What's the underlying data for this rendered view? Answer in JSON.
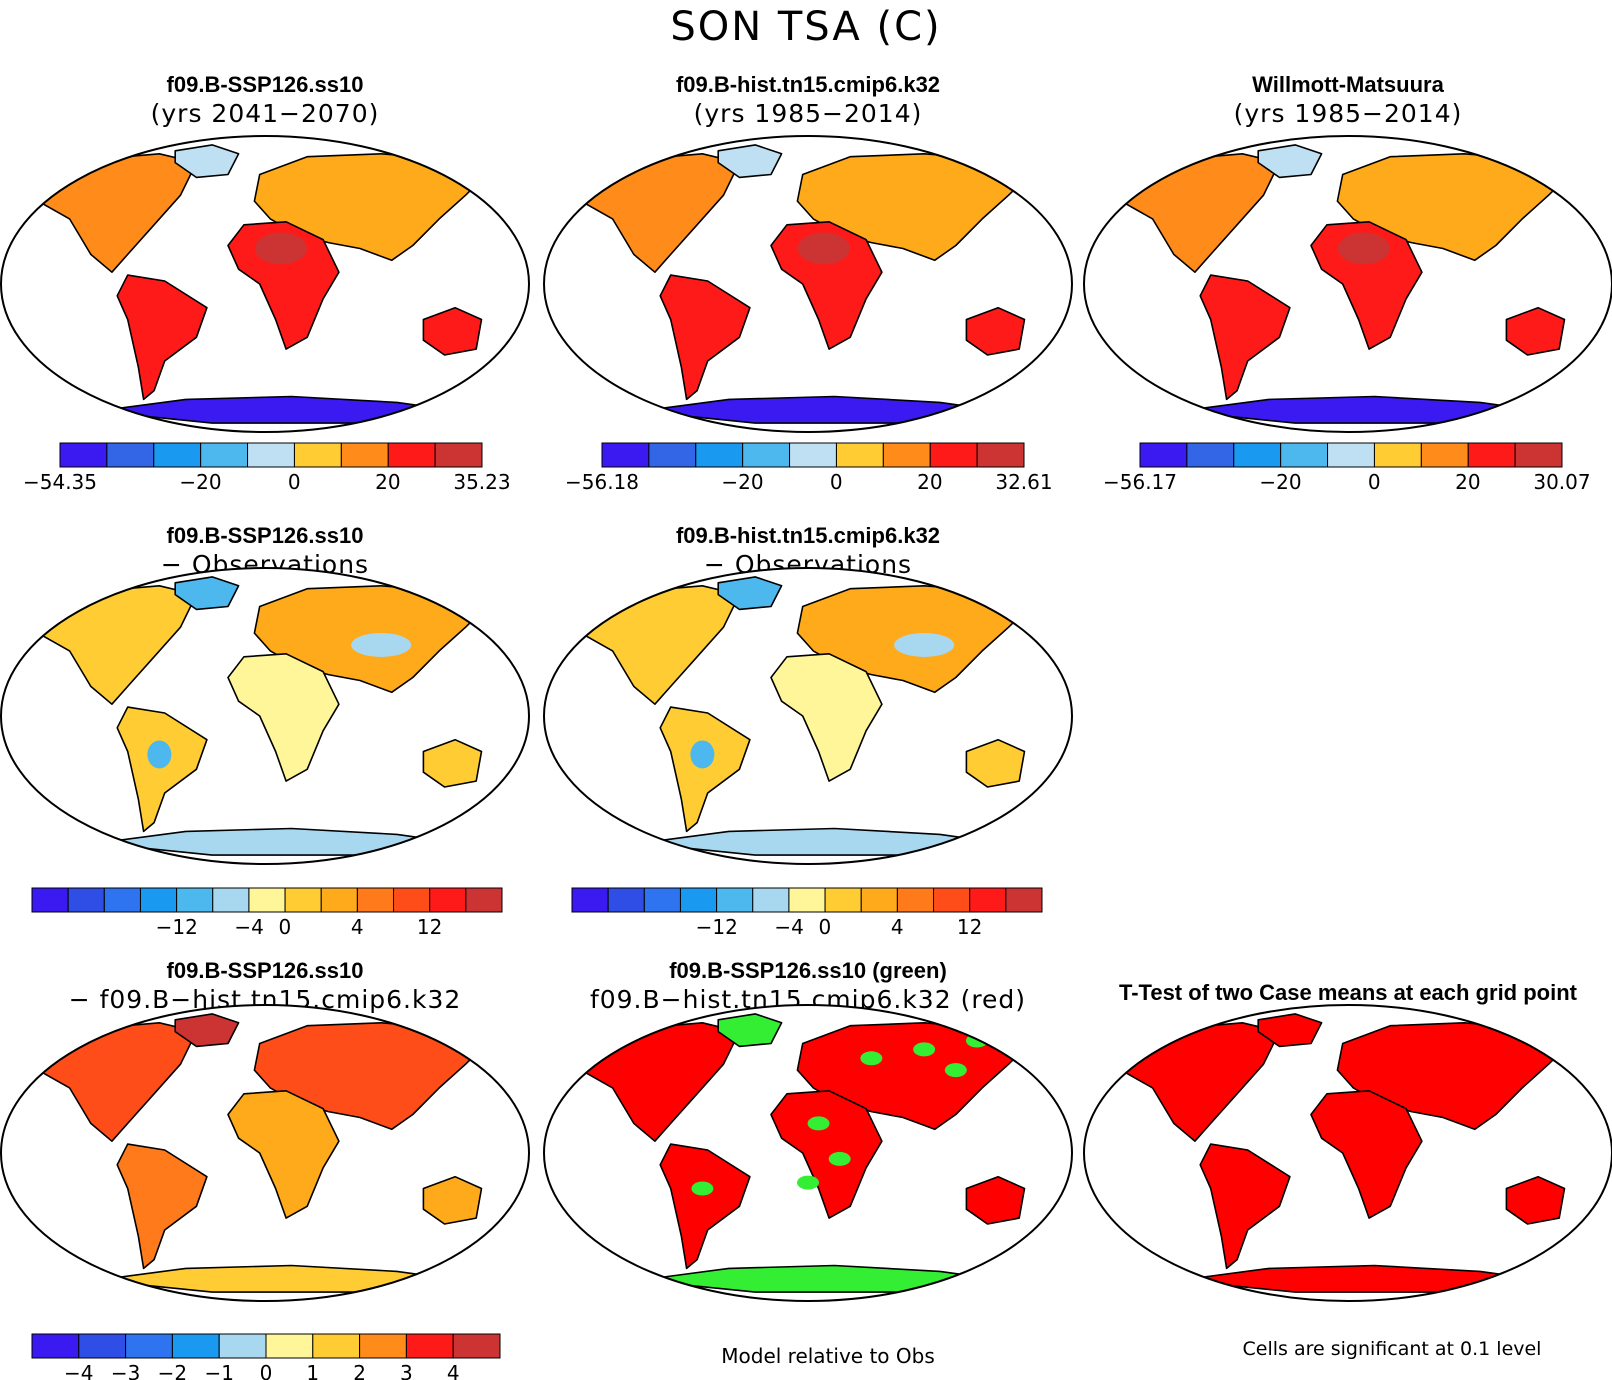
{
  "figure_title": "SON TSA (C)",
  "panels": [
    {
      "line1": "f09.B-SSP126.ss10",
      "line2": "(yrs 2041−2070)",
      "map": "warm"
    },
    {
      "line1": "f09.B-hist.tn15.cmip6.k32",
      "line2": "(yrs 1985−2014)",
      "map": "warm"
    },
    {
      "line1": "Willmott-Matsuura",
      "line2": "(yrs 1985−2014)",
      "map": "warm"
    },
    {
      "line1": "f09.B-SSP126.ss10",
      "line2": "− Observations",
      "map": "bias"
    },
    {
      "line1": "f09.B-hist.tn15.cmip6.k32",
      "line2": "− Observations",
      "map": "bias"
    },
    {
      "line1": "f09.B-SSP126.ss10",
      "line2": "− f09.B−hist.tn15.cmip6.k32",
      "map": "diff"
    },
    {
      "line1": "f09.B-SSP126.ss10 (green)",
      "line2": "f09.B−hist.tn15.cmip6.k32 (red)",
      "map": "compare"
    },
    {
      "line1": "T-Test of two Case means at each grid point",
      "line2": "",
      "map": "ttest"
    }
  ],
  "colorbars": [
    {
      "colors": [
        "#3a1af0",
        "#3366e6",
        "#1a99f0",
        "#4db8ee",
        "#bfe0f2",
        "#ffcc33",
        "#ff8c1a",
        "#ff1a1a",
        "#cc3333"
      ],
      "labels": [
        "−54.35",
        "−20",
        "0",
        "20",
        "35.23"
      ]
    },
    {
      "colors": [
        "#3a1af0",
        "#3366e6",
        "#1a99f0",
        "#4db8ee",
        "#bfe0f2",
        "#ffcc33",
        "#ff8c1a",
        "#ff1a1a",
        "#cc3333"
      ],
      "labels": [
        "−56.18",
        "−20",
        "0",
        "20",
        "32.61"
      ]
    },
    {
      "colors": [
        "#3a1af0",
        "#3366e6",
        "#1a99f0",
        "#4db8ee",
        "#bfe0f2",
        "#ffcc33",
        "#ff8c1a",
        "#ff1a1a",
        "#cc3333"
      ],
      "labels": [
        "−56.17",
        "−20",
        "0",
        "20",
        "30.07"
      ]
    },
    {
      "colors": [
        "#3a1af0",
        "#2e4ee6",
        "#2e74f0",
        "#1a99f0",
        "#4db8ee",
        "#a8d8f0",
        "#fff599",
        "#ffcc33",
        "#ffaa1a",
        "#ff7a1a",
        "#ff4d1a",
        "#ff1a1a",
        "#cc3333"
      ],
      "labels": [
        "−12",
        "−4",
        "0",
        "4",
        "12"
      ]
    },
    {
      "colors": [
        "#3a1af0",
        "#2e4ee6",
        "#2e74f0",
        "#1a99f0",
        "#4db8ee",
        "#a8d8f0",
        "#fff599",
        "#ffcc33",
        "#ffaa1a",
        "#ff7a1a",
        "#ff4d1a",
        "#ff1a1a",
        "#cc3333"
      ],
      "labels": [
        "−12",
        "−4",
        "0",
        "4",
        "12"
      ]
    },
    {
      "colors": [
        "#3a1af0",
        "#2e4ee6",
        "#2e74f0",
        "#1a99f0",
        "#a8d8f0",
        "#fff599",
        "#ffcc33",
        "#ff8c1a",
        "#ff1a1a",
        "#cc3333"
      ],
      "labels": [
        "−4",
        "−3",
        "−2",
        "−1",
        "0",
        "1",
        "2",
        "3",
        "4"
      ]
    }
  ],
  "footnotes": {
    "model_relative": "Model relative to Obs",
    "significance": "Cells are significant at 0.1 level"
  },
  "colors": {
    "ocean": "#ffffff",
    "coast": "#000000",
    "significant_red": "#ff0000",
    "green": "#33ee33"
  }
}
